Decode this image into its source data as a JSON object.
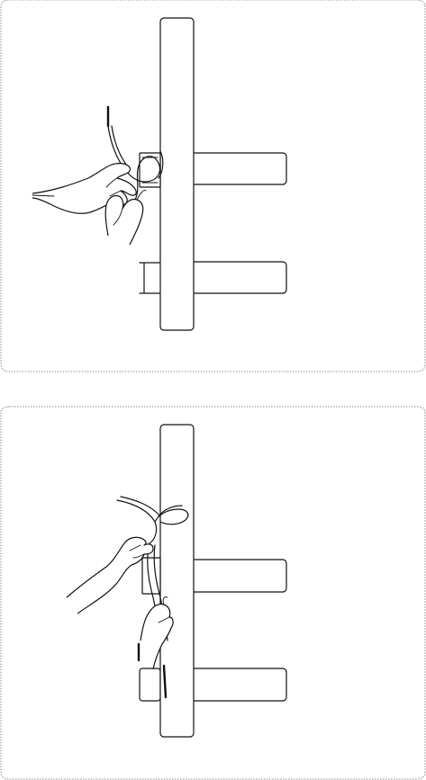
{
  "figure": {
    "panels": [
      {
        "step": "top",
        "depicts": [
          "post",
          "upper-crossbar",
          "lower-crossbar",
          "mounting-bracket",
          "cable",
          "left-hand",
          "right-hand"
        ]
      },
      {
        "step": "bottom",
        "depicts": [
          "post",
          "upper-crossbar",
          "lower-crossbar",
          "mounting-bracket",
          "cable-loop",
          "left-hand",
          "right-hand"
        ]
      }
    ],
    "colors": {
      "ink": "#111111",
      "frame": "#8a8a8a",
      "background": "#ffffff"
    }
  }
}
